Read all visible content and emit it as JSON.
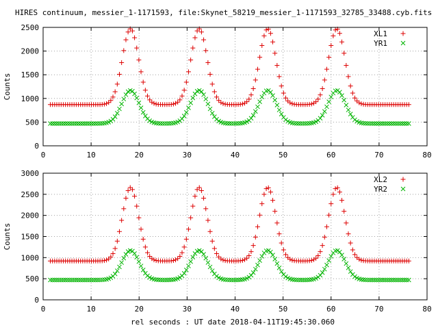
{
  "title": "HIRES continuum, messier_1-1171593, file:Skynet_58219_messier_1-1171593_32785_33488.cyb.fits",
  "xlabel": "rel seconds : UT date 2018-04-11T19:45:30.060",
  "colors": {
    "red": "#dd0000",
    "green": "#00b400",
    "axis": "#000000",
    "grid": "#a0a0a0"
  },
  "chart_data": [
    {
      "type": "scatter",
      "title": "",
      "xlabel": "",
      "ylabel": "Counts",
      "xlim": [
        0,
        80
      ],
      "ylim": [
        0,
        2500
      ],
      "xticks": [
        0,
        10,
        20,
        30,
        40,
        50,
        60,
        70,
        80
      ],
      "yticks": [
        0,
        500,
        1000,
        1500,
        2000,
        2500
      ],
      "grid": true,
      "legend_position": "top-right",
      "peaks_x": [
        18.2,
        32.5,
        46.8,
        61.2
      ],
      "sample_range": [
        1.5,
        76.3
      ],
      "sample_step": 0.45,
      "series": [
        {
          "name": "XL1",
          "marker": "plus",
          "color": "#dd0000",
          "baseline": 870,
          "peak": 2470,
          "peak_width": 1.7
        },
        {
          "name": "YR1",
          "marker": "cross",
          "color": "#00b400",
          "baseline": 470,
          "peak": 1170,
          "peak_width": 1.8
        }
      ]
    },
    {
      "type": "scatter",
      "title": "",
      "xlabel": "rel seconds : UT date 2018-04-11T19:45:30.060",
      "ylabel": "Counts",
      "xlim": [
        0,
        80
      ],
      "ylim": [
        0,
        3000
      ],
      "xticks": [
        0,
        10,
        20,
        30,
        40,
        50,
        60,
        70,
        80
      ],
      "yticks": [
        0,
        500,
        1000,
        1500,
        2000,
        2500,
        3000
      ],
      "grid": true,
      "legend_position": "top-right",
      "peaks_x": [
        18.2,
        32.5,
        46.8,
        61.2
      ],
      "sample_range": [
        1.5,
        76.3
      ],
      "sample_step": 0.45,
      "series": [
        {
          "name": "XL2",
          "marker": "plus",
          "color": "#dd0000",
          "baseline": 920,
          "peak": 2660,
          "peak_width": 1.7
        },
        {
          "name": "YR2",
          "marker": "cross",
          "color": "#00b400",
          "baseline": 470,
          "peak": 1170,
          "peak_width": 1.8
        }
      ]
    }
  ]
}
